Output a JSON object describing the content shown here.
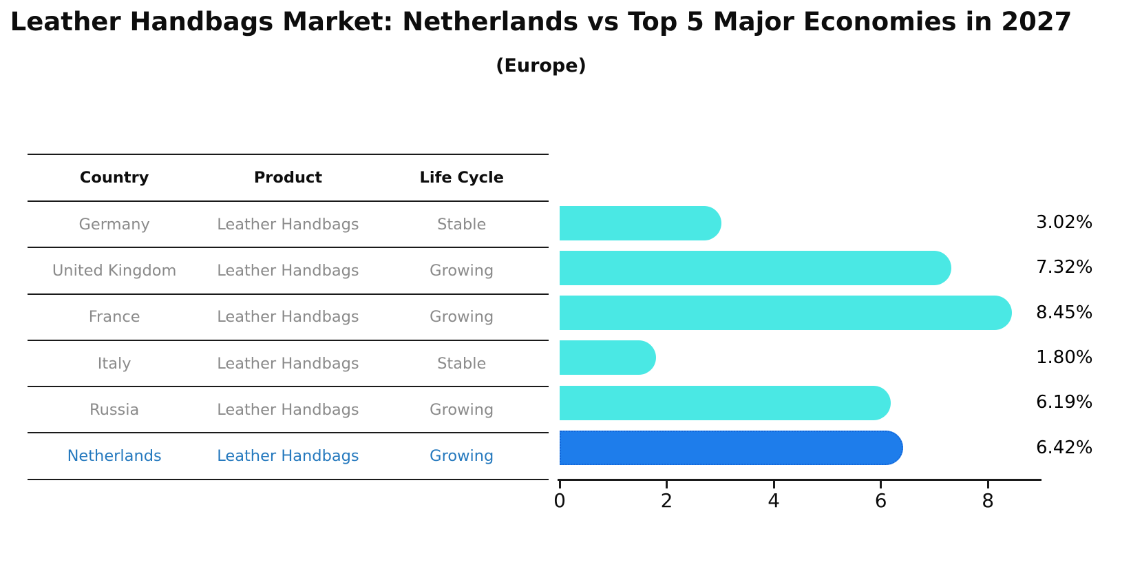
{
  "title": "Leather Handbags Market: Netherlands vs Top 5 Major Economies in 2027",
  "subtitle": "(Europe)",
  "table": {
    "headers": [
      "Country",
      "Product",
      "Life Cycle"
    ],
    "rows": [
      {
        "country": "Germany",
        "product": "Leather Handbags",
        "life_cycle": "Stable",
        "highlight": false
      },
      {
        "country": "United Kingdom",
        "product": "Leather Handbags",
        "life_cycle": "Growing",
        "highlight": false
      },
      {
        "country": "France",
        "product": "Leather Handbags",
        "life_cycle": "Growing",
        "highlight": false
      },
      {
        "country": "Italy",
        "product": "Leather Handbags",
        "life_cycle": "Stable",
        "highlight": false
      },
      {
        "country": "Russia",
        "product": "Leather Handbags",
        "life_cycle": "Growing",
        "highlight": false
      },
      {
        "country": "Netherlands",
        "product": "Leather Handbags",
        "life_cycle": "Growing",
        "highlight": true
      }
    ]
  },
  "chart_data": {
    "type": "bar",
    "orientation": "horizontal",
    "title": "Leather Handbags Market: Netherlands vs Top 5 Major Economies in 2027 (Europe)",
    "categories": [
      "Germany",
      "United Kingdom",
      "France",
      "Italy",
      "Russia",
      "Netherlands"
    ],
    "values": [
      3.02,
      7.32,
      8.45,
      1.8,
      6.19,
      6.42
    ],
    "value_labels": [
      "3.02%",
      "7.32%",
      "8.45%",
      "1.80%",
      "6.19%",
      "6.42%"
    ],
    "unit": "percent",
    "xlim": [
      0,
      9.0
    ],
    "xticks": [
      "0",
      "2",
      "4",
      "6",
      "8"
    ],
    "xtick_values": [
      0,
      2,
      4,
      6,
      8
    ],
    "grid": false,
    "legend": "none",
    "bar_color": "#4AE8E4",
    "highlight_color": "#1E7DEB",
    "highlight_border_color": "#1266D8",
    "highlight_index": 5
  },
  "colors": {
    "background": "#ffffff",
    "table_text": "#8a8a8a",
    "header_text": "#0d0d0d",
    "highlight_text": "#2579BE",
    "axis": "#1a1a1a"
  }
}
